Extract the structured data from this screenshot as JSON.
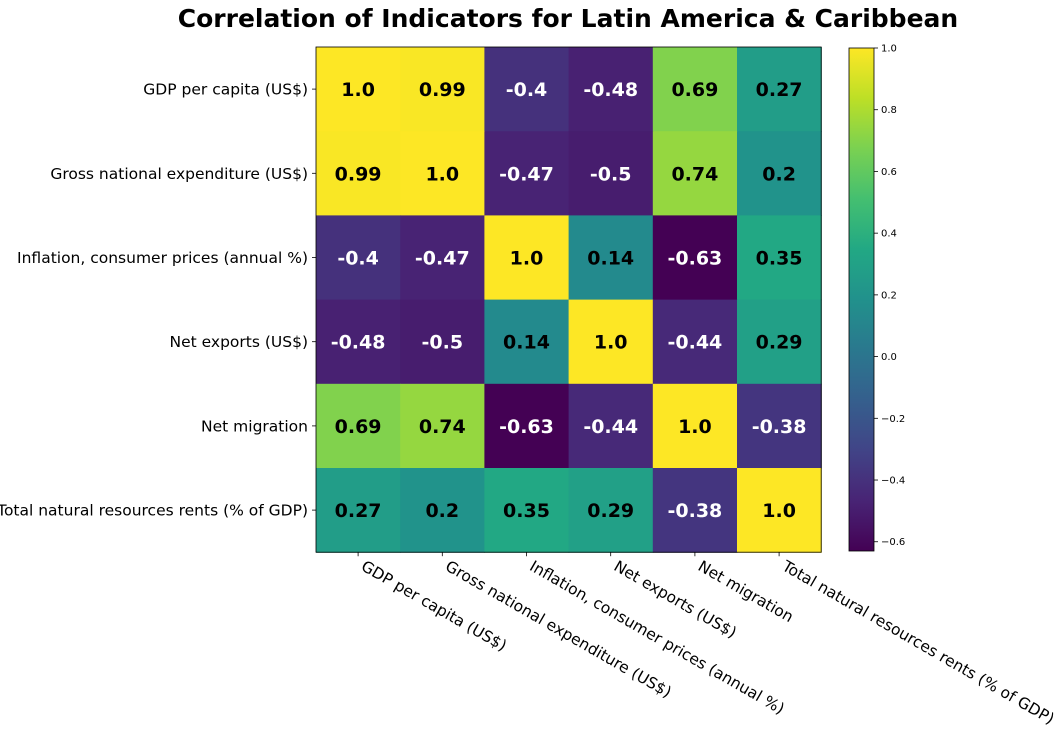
{
  "chart_data": {
    "type": "heatmap",
    "title": "Correlation of Indicators for Latin America & Caribbean",
    "labels": [
      "GDP per capita (US$)",
      "Gross national expenditure (US$)",
      "Inflation, consumer prices (annual %)",
      "Net exports (US$)",
      "Net migration",
      "Total natural resources rents (% of GDP)"
    ],
    "matrix": [
      [
        1.0,
        0.99,
        -0.4,
        -0.48,
        0.69,
        0.27
      ],
      [
        0.99,
        1.0,
        -0.47,
        -0.5,
        0.74,
        0.2
      ],
      [
        -0.4,
        -0.47,
        1.0,
        0.14,
        -0.63,
        0.35
      ],
      [
        -0.48,
        -0.5,
        0.14,
        1.0,
        -0.44,
        0.29
      ],
      [
        0.69,
        0.74,
        -0.63,
        -0.44,
        1.0,
        -0.38
      ],
      [
        0.27,
        0.2,
        0.35,
        0.29,
        -0.38,
        1.0
      ]
    ],
    "display_values": [
      [
        "1.0",
        "0.99",
        "-0.4",
        "-0.48",
        "0.69",
        "0.27"
      ],
      [
        "0.99",
        "1.0",
        "-0.47",
        "-0.5",
        "0.74",
        "0.2"
      ],
      [
        "-0.4",
        "-0.47",
        "1.0",
        "0.14",
        "-0.63",
        "0.35"
      ],
      [
        "-0.48",
        "-0.5",
        "0.14",
        "1.0",
        "-0.44",
        "0.29"
      ],
      [
        "0.69",
        "0.74",
        "-0.63",
        "-0.44",
        "1.0",
        "-0.38"
      ],
      [
        "0.27",
        "0.2",
        "0.35",
        "0.29",
        "-0.38",
        "1.0"
      ]
    ],
    "colormap": "viridis",
    "vmin": -0.63,
    "vmax": 1.0,
    "colorbar_ticks": [
      "1.0",
      "0.8",
      "0.6",
      "0.4",
      "0.2",
      "0.0",
      "−0.2",
      "−0.4",
      "−0.6"
    ],
    "colorbar_tick_values": [
      1.0,
      0.8,
      0.6,
      0.4,
      0.2,
      0.0,
      -0.2,
      -0.4,
      -0.6
    ],
    "grid": false,
    "legend": "colorbar-right"
  }
}
